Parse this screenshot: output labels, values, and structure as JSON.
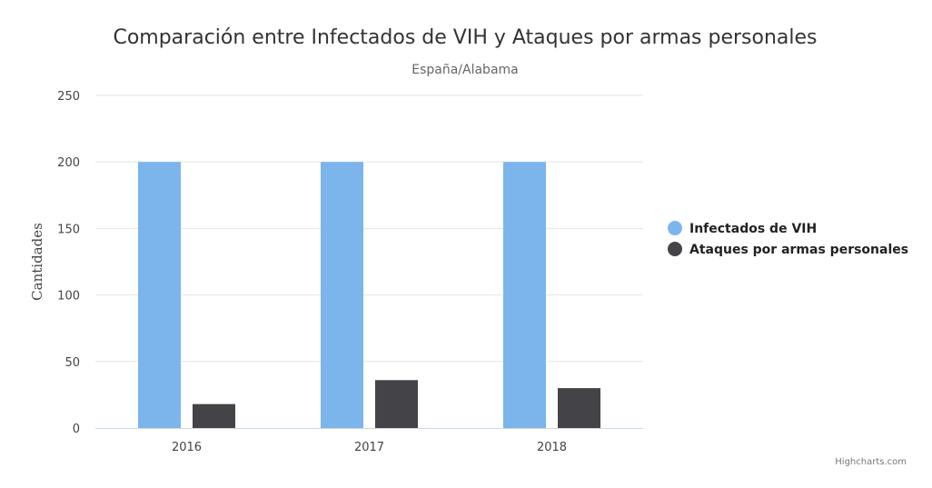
{
  "chart_data": {
    "type": "bar",
    "title": "Comparación entre Infectados de VIH y Ataques por armas personales",
    "subtitle": "España/Alabama",
    "xlabel": "",
    "ylabel": "Cantidades",
    "categories": [
      "2016",
      "2017",
      "2018"
    ],
    "ylim": [
      0,
      250
    ],
    "yticks": [
      0,
      50,
      100,
      150,
      200,
      250
    ],
    "grid": true,
    "legend_position": "right",
    "series": [
      {
        "name": "Infectados de VIH",
        "color": "#7cb5ec",
        "values": [
          200,
          200,
          200
        ]
      },
      {
        "name": "Ataques por armas personales",
        "color": "#434348",
        "values": [
          18,
          36,
          30
        ]
      }
    ]
  },
  "credits": "Highcharts.com"
}
